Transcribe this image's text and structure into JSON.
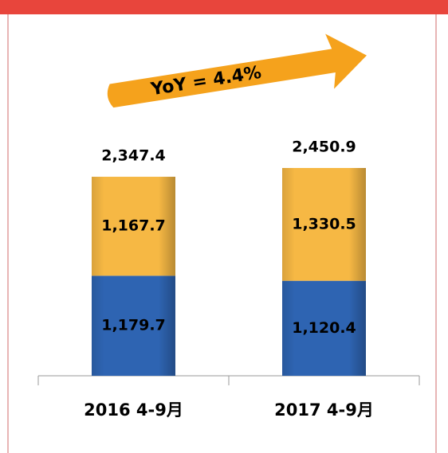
{
  "chart_data": {
    "type": "stacked_bar",
    "annotation": "YoY = 4.4%",
    "categories": [
      "2016 4-9月",
      "2017 4-9月"
    ],
    "series": [
      {
        "color": "#2e64b2",
        "values": [
          1179.7,
          1120.4
        ],
        "value_labels": [
          "1,179.7",
          "1,120.4"
        ]
      },
      {
        "color": "#f6b844",
        "values": [
          1167.7,
          1330.5
        ],
        "value_labels": [
          "1,167.7",
          "1,330.5"
        ]
      }
    ],
    "totals": [
      2347.4,
      2450.9
    ],
    "total_labels": [
      "2,347.4",
      "2,450.9"
    ]
  }
}
